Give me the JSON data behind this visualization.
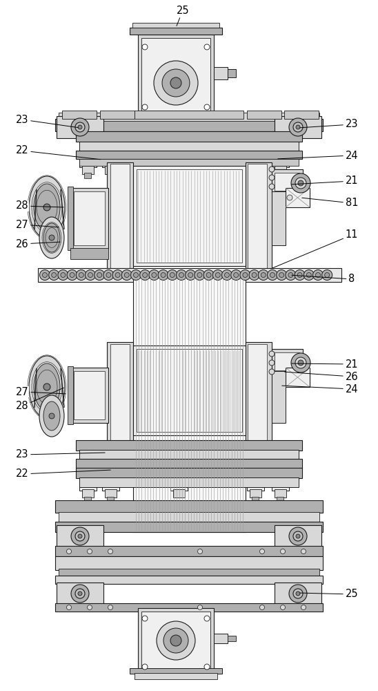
{
  "bg_color": "#ffffff",
  "lc": "#1a1a1a",
  "lw": 0.8,
  "fig_w": 5.48,
  "fig_h": 10.0,
  "dpi": 100
}
